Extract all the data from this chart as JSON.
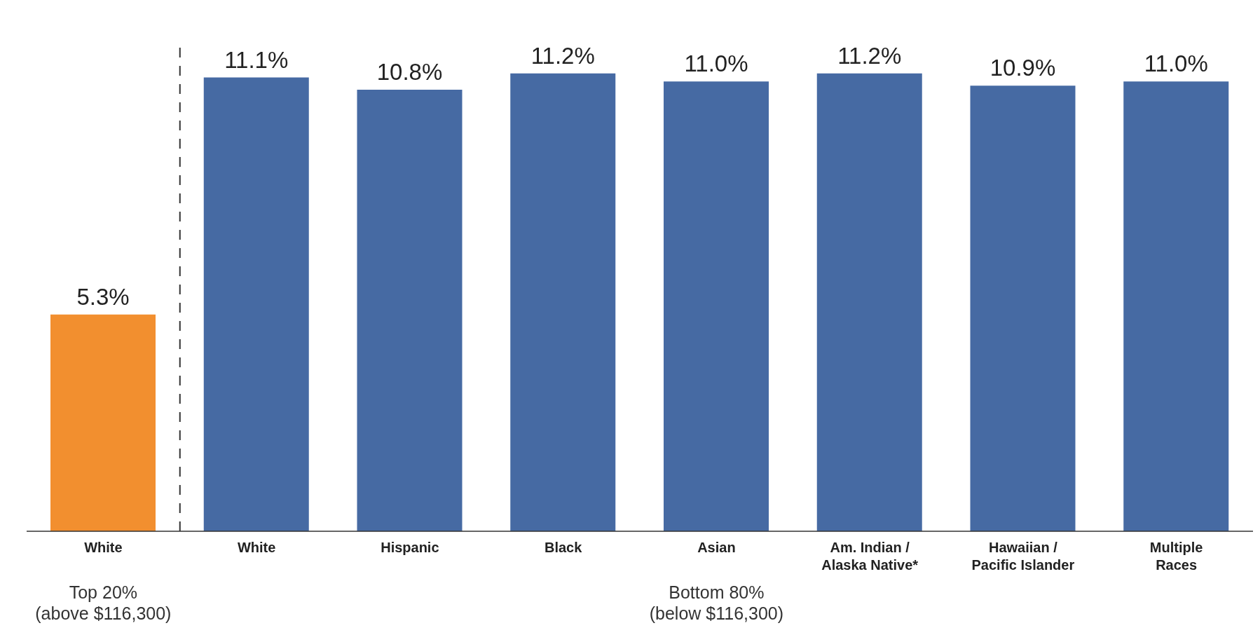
{
  "chart_data": {
    "type": "bar",
    "categories": [
      "White",
      "White",
      "Hispanic",
      "Black",
      "Asian",
      "Am. Indian /\nAlaska Native*",
      "Hawaiian /\nPacific Islander",
      "Multiple\nRaces"
    ],
    "values": [
      5.3,
      11.1,
      10.8,
      11.2,
      11.0,
      11.2,
      10.9,
      11.0
    ],
    "value_labels": [
      "5.3%",
      "11.1%",
      "10.8%",
      "11.2%",
      "11.0%",
      "11.2%",
      "10.9%",
      "11.0%"
    ],
    "colors": [
      "#f28f2f",
      "#466aa3",
      "#466aa3",
      "#466aa3",
      "#466aa3",
      "#466aa3",
      "#466aa3",
      "#466aa3"
    ],
    "annotations": [
      "Top 20%\n(above $116,300)",
      "Bottom 80%\n(below $116,300)"
    ]
  }
}
